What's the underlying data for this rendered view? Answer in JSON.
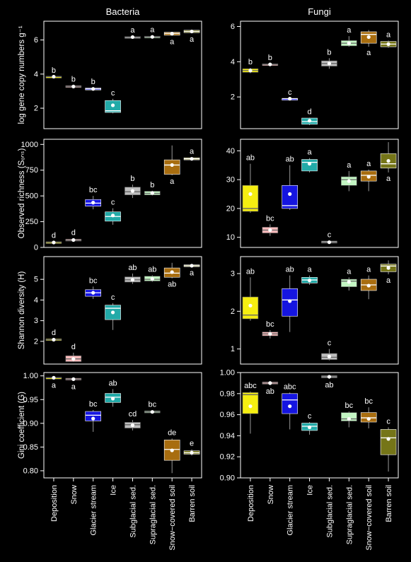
{
  "colors": {
    "background": "#000000",
    "axis": "#ffffff",
    "mean_dot": "#ffffff",
    "groups": {
      "Deposition": "#f5ee11",
      "Snow": "#f7b9ba",
      "Glacier stream": "#1515e0",
      "Ice": "#22aaa8",
      "Subglacial sed.": "#bdbdbd",
      "Supraglacial sed.": "#c3f5c3",
      "Snow−covered soil": "#a86d0f",
      "Barren soil": "#757518"
    }
  },
  "chart_data": [
    {
      "id": "bacteria-gene-copies",
      "type": "box",
      "title": "Bacteria",
      "ylabel": "log gene copy numbers g⁻¹",
      "ylim": [
        0.8,
        7.1
      ],
      "yticks": [
        2,
        4,
        6
      ],
      "categories": [
        "Deposition",
        "Snow",
        "Glacier stream",
        "Ice",
        "Subglacial sed.",
        "Supraglacial sed.",
        "Snow−covered soil",
        "Barren soil"
      ],
      "boxes": [
        {
          "q1": 3.83,
          "median": 3.85,
          "q3": 3.87,
          "whisker_low": 3.83,
          "whisker_high": 3.87,
          "mean": 3.85,
          "letter": "b"
        },
        {
          "q1": 3.22,
          "median": 3.27,
          "q3": 3.32,
          "whisker_low": 3.2,
          "whisker_high": 3.35,
          "mean": 3.27,
          "letter": "b"
        },
        {
          "q1": 3.07,
          "median": 3.13,
          "q3": 3.18,
          "whisker_low": 3.05,
          "whisker_high": 3.2,
          "mean": 3.13,
          "letter": "b"
        },
        {
          "q1": 1.75,
          "median": 1.85,
          "q3": 2.45,
          "whisker_low": 1.7,
          "whisker_high": 2.55,
          "mean": 2.17,
          "letter": "c"
        },
        {
          "q1": 6.14,
          "median": 6.17,
          "q3": 6.2,
          "whisker_low": 6.12,
          "whisker_high": 6.22,
          "mean": 6.17,
          "letter": "a"
        },
        {
          "q1": 6.14,
          "median": 6.18,
          "q3": 6.22,
          "whisker_low": 6.12,
          "whisker_high": 6.24,
          "mean": 6.18,
          "letter": "a"
        },
        {
          "q1": 6.28,
          "median": 6.38,
          "q3": 6.45,
          "whisker_low": 6.25,
          "whisker_high": 6.48,
          "mean": 6.37,
          "letter": "a"
        },
        {
          "q1": 6.43,
          "median": 6.5,
          "q3": 6.57,
          "whisker_low": 6.4,
          "whisker_high": 6.6,
          "mean": 6.5,
          "letter": "a"
        }
      ]
    },
    {
      "id": "fungi-gene-copies",
      "type": "box",
      "title": "Fungi",
      "ylabel": "",
      "ylim": [
        0.2,
        6.3
      ],
      "yticks": [
        2,
        4,
        6
      ],
      "categories": [
        "Deposition",
        "Snow",
        "Glacier stream",
        "Ice",
        "Subglacial sed.",
        "Supraglacial sed.",
        "Snow−covered soil",
        "Barren soil"
      ],
      "boxes": [
        {
          "q1": 3.4,
          "median": 3.5,
          "q3": 3.6,
          "whisker_low": 3.35,
          "whisker_high": 3.65,
          "mean": 3.5,
          "letter": "b"
        },
        {
          "q1": 3.82,
          "median": 3.85,
          "q3": 3.88,
          "whisker_low": 3.8,
          "whisker_high": 3.9,
          "mean": 3.85,
          "letter": "b"
        },
        {
          "q1": 1.88,
          "median": 1.9,
          "q3": 1.92,
          "whisker_low": 1.87,
          "whisker_high": 1.93,
          "mean": 1.9,
          "letter": "c"
        },
        {
          "q1": 0.45,
          "median": 0.6,
          "q3": 0.8,
          "whisker_low": 0.4,
          "whisker_high": 0.82,
          "mean": 0.65,
          "letter": "d"
        },
        {
          "q1": 3.75,
          "median": 3.9,
          "q3": 4.05,
          "whisker_low": 3.6,
          "whisker_high": 4.2,
          "mean": 3.9,
          "letter": "b"
        },
        {
          "q1": 4.9,
          "median": 5.05,
          "q3": 5.2,
          "whisker_low": 4.85,
          "whisker_high": 5.45,
          "mean": 5.05,
          "letter": "a"
        },
        {
          "q1": 5.05,
          "median": 5.55,
          "q3": 5.7,
          "whisker_low": 4.85,
          "whisker_high": 5.8,
          "mean": 5.4,
          "letter": "a"
        },
        {
          "q1": 4.85,
          "median": 5.0,
          "q3": 5.15,
          "whisker_low": 4.8,
          "whisker_high": 5.2,
          "mean": 5.0,
          "letter": "a"
        }
      ]
    },
    {
      "id": "bacteria-richness",
      "type": "box",
      "title": "",
      "ylabel": "Observed richness (Sₒₙₛ)",
      "ylim": [
        0,
        1050
      ],
      "yticks": [
        0,
        250,
        500,
        750,
        1000
      ],
      "categories": [
        "Deposition",
        "Snow",
        "Glacier stream",
        "Ice",
        "Subglacial sed.",
        "Supraglacial sed.",
        "Snow−covered soil",
        "Barren soil"
      ],
      "boxes": [
        {
          "q1": 42,
          "median": 48,
          "q3": 55,
          "whisker_low": 38,
          "whisker_high": 58,
          "mean": 48,
          "letter": "d"
        },
        {
          "q1": 62,
          "median": 70,
          "q3": 80,
          "whisker_low": 58,
          "whisker_high": 85,
          "mean": 72,
          "letter": "d"
        },
        {
          "q1": 400,
          "median": 430,
          "q3": 465,
          "whisker_low": 370,
          "whisker_high": 500,
          "mean": 435,
          "letter": "bc"
        },
        {
          "q1": 255,
          "median": 300,
          "q3": 345,
          "whisker_low": 220,
          "whisker_high": 380,
          "mean": 310,
          "letter": "c"
        },
        {
          "q1": 510,
          "median": 540,
          "q3": 585,
          "whisker_low": 480,
          "whisker_high": 610,
          "mean": 548,
          "letter": "b"
        },
        {
          "q1": 510,
          "median": 525,
          "q3": 545,
          "whisker_low": 505,
          "whisker_high": 550,
          "mean": 528,
          "letter": "b"
        },
        {
          "q1": 710,
          "median": 800,
          "q3": 850,
          "whisker_low": 700,
          "whisker_high": 990,
          "mean": 800,
          "letter": "a"
        },
        {
          "q1": 850,
          "median": 860,
          "q3": 870,
          "whisker_low": 845,
          "whisker_high": 875,
          "mean": 860,
          "letter": "a"
        }
      ]
    },
    {
      "id": "fungi-richness",
      "type": "box",
      "title": "",
      "ylabel": "",
      "ylim": [
        6.5,
        44
      ],
      "yticks": [
        10,
        20,
        30,
        40
      ],
      "categories": [
        "Deposition",
        "Snow",
        "Glacier stream",
        "Ice",
        "Subglacial sed.",
        "Supraglacial sed.",
        "Snow−covered soil",
        "Barren soil"
      ],
      "boxes": [
        {
          "q1": 19,
          "median": 20,
          "q3": 28,
          "whisker_low": 18.5,
          "whisker_high": 35.5,
          "mean": 25,
          "letter": "ab"
        },
        {
          "q1": 11.5,
          "median": 12.5,
          "q3": 13.5,
          "whisker_low": 10.5,
          "whisker_high": 14.5,
          "mean": 12.5,
          "letter": "bc"
        },
        {
          "q1": 20,
          "median": 21,
          "q3": 28,
          "whisker_low": 19.5,
          "whisker_high": 35,
          "mean": 25,
          "letter": "ab"
        },
        {
          "q1": 33,
          "median": 36,
          "q3": 37,
          "whisker_low": 32.5,
          "whisker_high": 37.5,
          "mean": 35.5,
          "letter": "a"
        },
        {
          "q1": 8,
          "median": 8.3,
          "q3": 8.7,
          "whisker_low": 7.8,
          "whisker_high": 8.8,
          "mean": 8.3,
          "letter": "c"
        },
        {
          "q1": 28,
          "median": 30,
          "q3": 31,
          "whisker_low": 26,
          "whisker_high": 33,
          "mean": 29.5,
          "letter": "a"
        },
        {
          "q1": 29.5,
          "median": 31.5,
          "q3": 33,
          "whisker_low": 26,
          "whisker_high": 33.5,
          "mean": 31,
          "letter": "a"
        },
        {
          "q1": 34,
          "median": 35.5,
          "q3": 39,
          "whisker_low": 32.5,
          "whisker_high": 43,
          "mean": 36.5,
          "letter": "a"
        }
      ]
    },
    {
      "id": "bacteria-shannon",
      "type": "box",
      "title": "",
      "ylabel": "Shannon diversity (H)",
      "ylim": [
        0.9,
        6.1
      ],
      "yticks": [
        2,
        3,
        4,
        5
      ],
      "categories": [
        "Deposition",
        "Snow",
        "Glacier stream",
        "Ice",
        "Subglacial sed.",
        "Supraglacial sed.",
        "Snow−covered soil",
        "Barren soil"
      ],
      "boxes": [
        {
          "q1": 2.05,
          "median": 2.08,
          "q3": 2.12,
          "whisker_low": 2.03,
          "whisker_high": 2.14,
          "mean": 2.08,
          "letter": "d"
        },
        {
          "q1": 1.02,
          "median": 1.15,
          "q3": 1.3,
          "whisker_low": 1.0,
          "whisker_high": 1.45,
          "mean": 1.15,
          "letter": "d"
        },
        {
          "q1": 4.18,
          "median": 4.35,
          "q3": 4.5,
          "whisker_low": 4.05,
          "whisker_high": 4.65,
          "mean": 4.35,
          "letter": "bc"
        },
        {
          "q1": 3.05,
          "median": 3.6,
          "q3": 3.75,
          "whisker_low": 2.55,
          "whisker_high": 3.85,
          "mean": 3.4,
          "letter": "c"
        },
        {
          "q1": 4.87,
          "median": 4.98,
          "q3": 5.12,
          "whisker_low": 4.78,
          "whisker_high": 5.28,
          "mean": 4.98,
          "letter": "ab"
        },
        {
          "q1": 4.92,
          "median": 5.0,
          "q3": 5.15,
          "whisker_low": 4.88,
          "whisker_high": 5.2,
          "mean": 5.02,
          "letter": "ab"
        },
        {
          "q1": 5.1,
          "median": 5.3,
          "q3": 5.55,
          "whisker_low": 5.05,
          "whisker_high": 5.8,
          "mean": 5.35,
          "letter": "ab"
        },
        {
          "q1": 5.62,
          "median": 5.66,
          "q3": 5.7,
          "whisker_low": 5.6,
          "whisker_high": 5.72,
          "mean": 5.66,
          "letter": "a"
        }
      ]
    },
    {
      "id": "fungi-shannon",
      "type": "box",
      "title": "",
      "ylabel": "",
      "ylim": [
        0.6,
        3.45
      ],
      "yticks": [
        1,
        2,
        3
      ],
      "categories": [
        "Deposition",
        "Snow",
        "Glacier stream",
        "Ice",
        "Subglacial sed.",
        "Supraglacial sed.",
        "Snow−covered soil",
        "Barren soil"
      ],
      "boxes": [
        {
          "q1": 1.8,
          "median": 1.9,
          "q3": 2.38,
          "whisker_low": 1.75,
          "whisker_high": 2.9,
          "mean": 2.15,
          "letter": "ab"
        },
        {
          "q1": 1.35,
          "median": 1.4,
          "q3": 1.45,
          "whisker_low": 1.28,
          "whisker_high": 1.5,
          "mean": 1.4,
          "letter": "bc"
        },
        {
          "q1": 1.87,
          "median": 2.3,
          "q3": 2.6,
          "whisker_low": 1.45,
          "whisker_high": 2.95,
          "mean": 2.27,
          "letter": "ab"
        },
        {
          "q1": 2.75,
          "median": 2.83,
          "q3": 2.9,
          "whisker_low": 2.7,
          "whisker_high": 2.95,
          "mean": 2.82,
          "letter": "a"
        },
        {
          "q1": 0.72,
          "median": 0.78,
          "q3": 0.88,
          "whisker_low": 0.7,
          "whisker_high": 1.0,
          "mean": 0.8,
          "letter": "c"
        },
        {
          "q1": 2.65,
          "median": 2.8,
          "q3": 2.85,
          "whisker_low": 2.55,
          "whisker_high": 2.9,
          "mean": 2.78,
          "letter": "a"
        },
        {
          "q1": 2.55,
          "median": 2.7,
          "q3": 2.85,
          "whisker_low": 2.32,
          "whisker_high": 2.95,
          "mean": 2.68,
          "letter": "a"
        },
        {
          "q1": 3.05,
          "median": 3.2,
          "q3": 3.25,
          "whisker_low": 2.98,
          "whisker_high": 3.35,
          "mean": 3.15,
          "letter": "a"
        }
      ]
    },
    {
      "id": "bacteria-gini",
      "type": "box",
      "title": "",
      "ylabel": "Gini coefficient (G)",
      "ylim": [
        0.785,
        1.007
      ],
      "yticks": [
        0.8,
        0.85,
        0.9,
        0.95,
        1.0
      ],
      "categories": [
        "Deposition",
        "Snow",
        "Glacier stream",
        "Ice",
        "Subglacial sed.",
        "Supraglacial sed.",
        "Snow−covered soil",
        "Barren soil"
      ],
      "boxes": [
        {
          "q1": 0.994,
          "median": 0.996,
          "q3": 0.997,
          "whisker_low": 0.993,
          "whisker_high": 0.998,
          "mean": 0.996,
          "letter": "a"
        },
        {
          "q1": 0.992,
          "median": 0.993,
          "q3": 0.995,
          "whisker_low": 0.99,
          "whisker_high": 0.996,
          "mean": 0.993,
          "letter": "a"
        },
        {
          "q1": 0.905,
          "median": 0.917,
          "q3": 0.925,
          "whisker_low": 0.882,
          "whisker_high": 0.928,
          "mean": 0.91,
          "letter": "bc"
        },
        {
          "q1": 0.944,
          "median": 0.955,
          "q3": 0.963,
          "whisker_low": 0.935,
          "whisker_high": 0.972,
          "mean": 0.952,
          "letter": "ab"
        },
        {
          "q1": 0.89,
          "median": 0.897,
          "q3": 0.902,
          "whisker_low": 0.885,
          "whisker_high": 0.907,
          "mean": 0.896,
          "letter": "cd"
        },
        {
          "q1": 0.922,
          "median": 0.924,
          "q3": 0.926,
          "whisker_low": 0.921,
          "whisker_high": 0.927,
          "mean": 0.924,
          "letter": "bc"
        },
        {
          "q1": 0.822,
          "median": 0.845,
          "q3": 0.865,
          "whisker_low": 0.795,
          "whisker_high": 0.868,
          "mean": 0.843,
          "letter": "de"
        },
        {
          "q1": 0.835,
          "median": 0.838,
          "q3": 0.842,
          "whisker_low": 0.832,
          "whisker_high": 0.845,
          "mean": 0.838,
          "letter": "e"
        }
      ]
    },
    {
      "id": "fungi-gini",
      "type": "box",
      "title": "",
      "ylabel": "",
      "ylim": [
        0.9,
        1.0
      ],
      "yticks": [
        0.9,
        0.92,
        0.94,
        0.96,
        0.98,
        1.0
      ],
      "categories": [
        "Deposition",
        "Snow",
        "Glacier stream",
        "Ice",
        "Subglacial sed.",
        "Supraglacial sed.",
        "Snow−covered soil",
        "Barren soil"
      ],
      "boxes": [
        {
          "q1": 0.961,
          "median": 0.979,
          "q3": 0.981,
          "whisker_low": 0.942,
          "whisker_high": 0.982,
          "mean": 0.968,
          "letter": "abc"
        },
        {
          "q1": 0.989,
          "median": 0.99,
          "q3": 0.991,
          "whisker_low": 0.988,
          "whisker_high": 0.992,
          "mean": 0.99,
          "letter": "ab"
        },
        {
          "q1": 0.961,
          "median": 0.974,
          "q3": 0.98,
          "whisker_low": 0.946,
          "whisker_high": 0.981,
          "mean": 0.968,
          "letter": "abc"
        },
        {
          "q1": 0.945,
          "median": 0.949,
          "q3": 0.952,
          "whisker_low": 0.941,
          "whisker_high": 0.953,
          "mean": 0.948,
          "letter": "c"
        },
        {
          "q1": 0.995,
          "median": 0.996,
          "q3": 0.997,
          "whisker_low": 0.994,
          "whisker_high": 0.997,
          "mean": 0.996,
          "letter": "ab"
        },
        {
          "q1": 0.954,
          "median": 0.956,
          "q3": 0.962,
          "whisker_low": 0.948,
          "whisker_high": 0.963,
          "mean": 0.956,
          "letter": "bc"
        },
        {
          "q1": 0.953,
          "median": 0.957,
          "q3": 0.962,
          "whisker_low": 0.947,
          "whisker_high": 0.967,
          "mean": 0.956,
          "letter": "bc"
        },
        {
          "q1": 0.922,
          "median": 0.938,
          "q3": 0.946,
          "whisker_low": 0.906,
          "whisker_high": 0.948,
          "mean": 0.937,
          "letter": "c"
        }
      ]
    }
  ]
}
